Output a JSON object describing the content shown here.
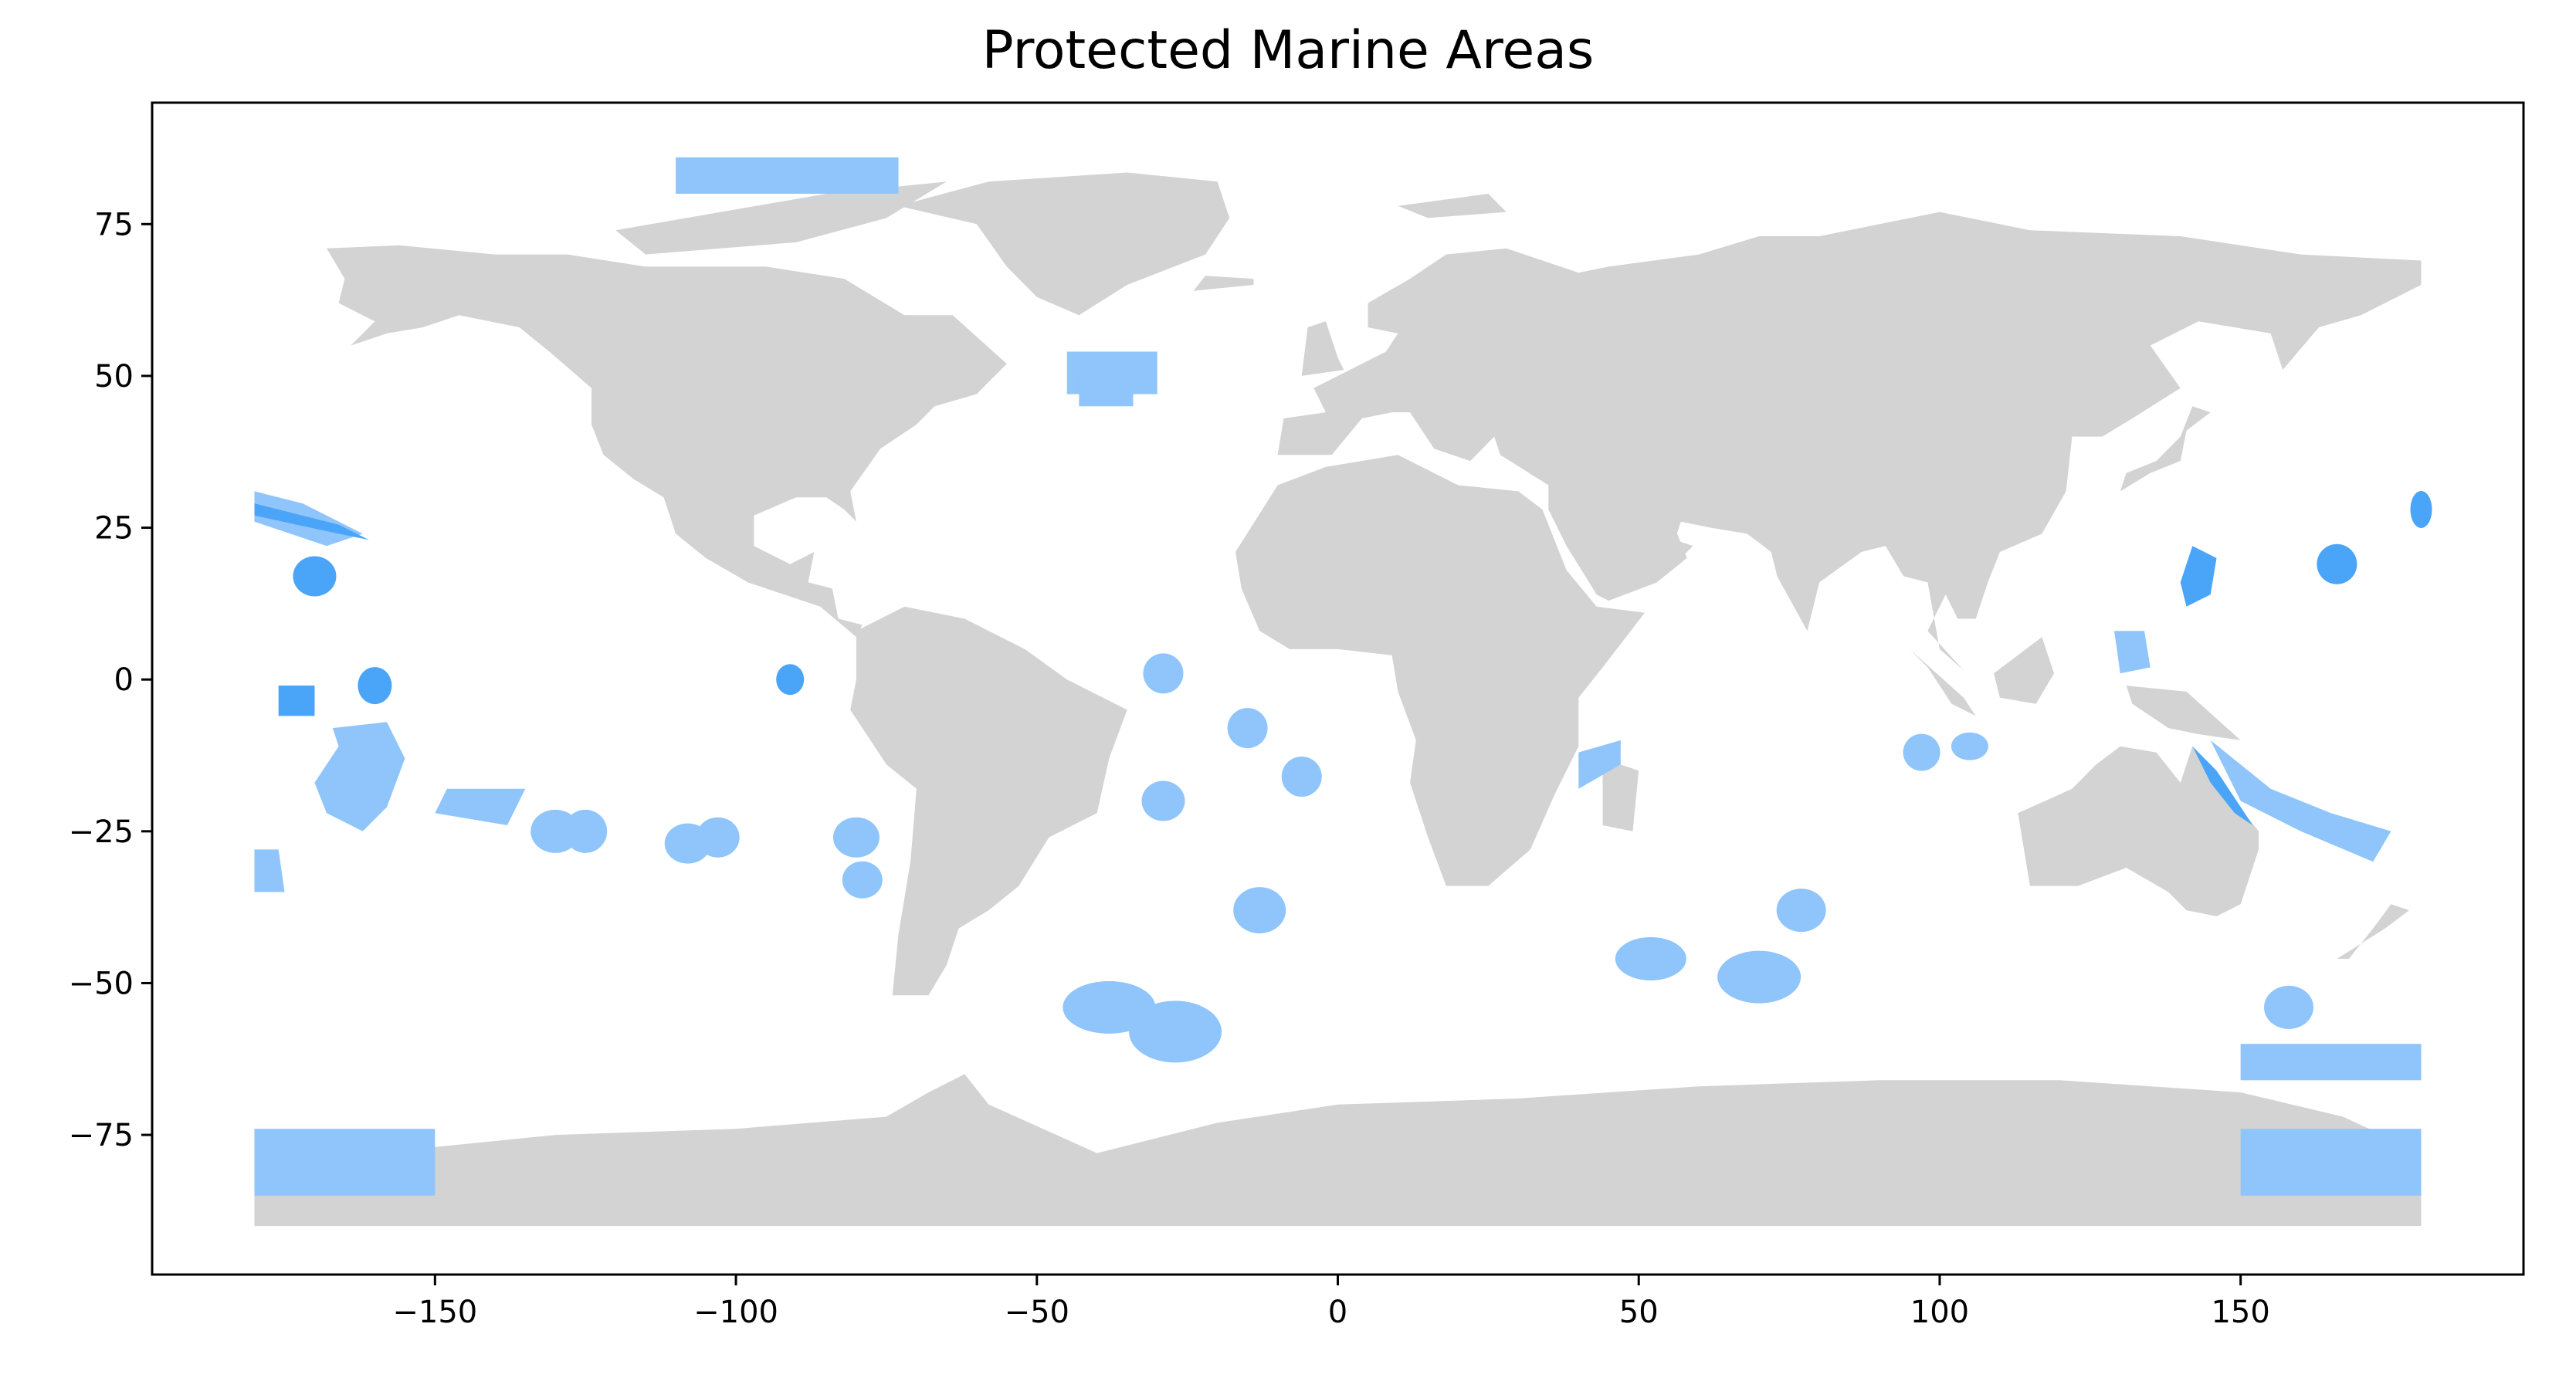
{
  "title": "Protected Marine Areas",
  "xlabel": "",
  "ylabel": "",
  "colors": {
    "land": "#d3d3d3",
    "protected_area": "#8fc5fb",
    "protected_area_dense": "#4aa4f7",
    "background": "#ffffff"
  },
  "chart_data": {
    "type": "map",
    "title": "Protected Marine Areas",
    "xlim": [
      -197,
      197
    ],
    "ylim": [
      -98,
      95
    ],
    "xticks": [
      -150,
      -100,
      -50,
      0,
      50,
      100,
      150
    ],
    "yticks": [
      75,
      50,
      25,
      0,
      -25,
      -50,
      -75
    ],
    "xtick_labels": [
      "−150",
      "−100",
      "−50",
      "0",
      "50",
      "100",
      "150"
    ],
    "ytick_labels": [
      "75",
      "50",
      "25",
      "0",
      "−25",
      "−50",
      "−75"
    ],
    "grid": false,
    "legend": "none"
  }
}
